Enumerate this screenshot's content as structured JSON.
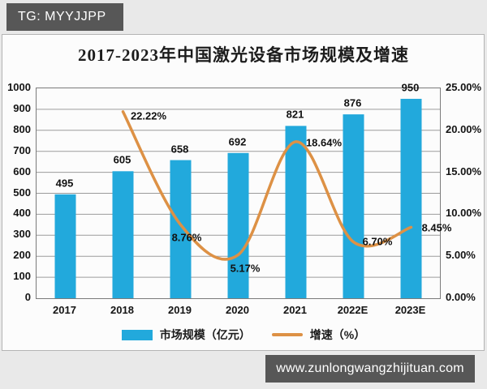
{
  "badge": {
    "text": "TG: MYYJJPP"
  },
  "watermark": {
    "text": "www.zunlongwangzhijituan.com"
  },
  "colors": {
    "bar": "#22a9dc",
    "line": "#dd9145",
    "grid": "#9b9b9b",
    "frame": "#7b7b7b",
    "dark_banner": "#575757"
  },
  "chart_data": {
    "type": "combo_bar_line",
    "title": "2017-2023年中国激光设备市场规模及增速",
    "categories": [
      "2017",
      "2018",
      "2019",
      "2020",
      "2021",
      "2022E",
      "2023E"
    ],
    "series": [
      {
        "name": "市场规模（亿元）",
        "type": "bar",
        "axis": "left",
        "values": [
          495,
          605,
          658,
          692,
          821,
          876,
          950
        ],
        "color": "#22a9dc"
      },
      {
        "name": "增速（%）",
        "type": "line",
        "axis": "right",
        "values": [
          null,
          22.22,
          8.76,
          5.17,
          18.64,
          6.7,
          8.45
        ],
        "labels": [
          "",
          "22.22%",
          "8.76%",
          "5.17%",
          "18.64%",
          "6.70%",
          "8.45%"
        ],
        "color": "#dd9145"
      }
    ],
    "left_axis": {
      "min": 0,
      "max": 1000,
      "step": 100,
      "ticks": [
        "0",
        "100",
        "200",
        "300",
        "400",
        "500",
        "600",
        "700",
        "800",
        "900",
        "1000"
      ]
    },
    "right_axis": {
      "min": 0,
      "max": 25,
      "step": 5,
      "ticks": [
        "0.00%",
        "5.00%",
        "10.00%",
        "15.00%",
        "20.00%",
        "25.00%"
      ]
    },
    "grid": true,
    "legend_position": "bottom"
  }
}
